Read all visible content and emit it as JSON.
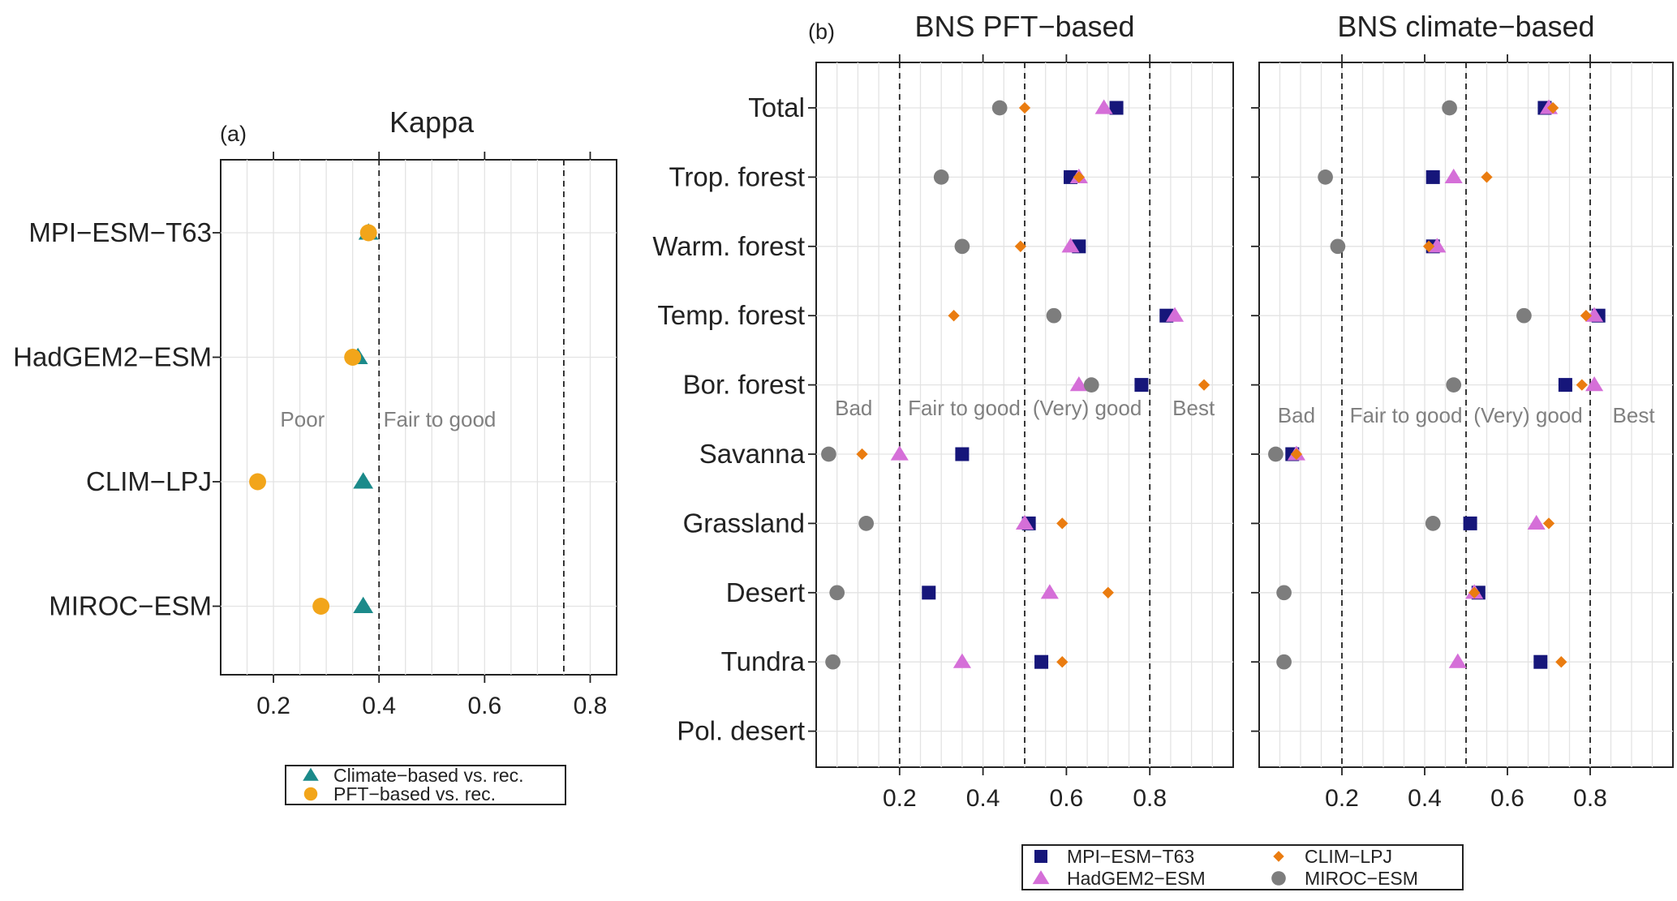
{
  "colors": {
    "teal": "#1b8a8a",
    "orange_circle": "#f2a51a",
    "navy": "#16167a",
    "violet": "#d56fd8",
    "orange_diamond": "#ea7c10",
    "gray": "#7d7d7d"
  },
  "chart_data": [
    {
      "id": "a",
      "type": "scatter",
      "panel_label": "(a)",
      "title": "Kappa",
      "categories": [
        "MPI−ESM−T63",
        "HadGEM2−ESM",
        "CLIM−LPJ",
        "MIROC−ESM"
      ],
      "xlim": [
        0.1,
        0.85
      ],
      "xticks": [
        0.2,
        0.4,
        0.6,
        0.8
      ],
      "xtick_labels": [
        "0.2",
        "0.4",
        "0.6",
        "0.8"
      ],
      "reference_lines": [
        0.4,
        0.75
      ],
      "zone_labels": [
        {
          "text": "Poor",
          "x": 0.255
        },
        {
          "text": "Fair  to  good",
          "x": 0.515
        }
      ],
      "series": [
        {
          "name": "Climate−based vs. rec.",
          "marker": "triangle",
          "color": "#1b8a8a",
          "values": [
            0.38,
            0.36,
            0.37,
            0.37
          ]
        },
        {
          "name": "PFT−based vs. rec.",
          "marker": "circle",
          "color": "#f2a51a",
          "values": [
            0.38,
            0.35,
            0.17,
            0.29
          ]
        }
      ]
    },
    {
      "id": "b1",
      "type": "scatter",
      "panel_label": "(b)",
      "title": "BNS  PFT−based",
      "categories": [
        "Total",
        "Trop. forest",
        "Warm. forest",
        "Temp. forest",
        "Bor. forest",
        "Savanna",
        "Grassland",
        "Desert",
        "Tundra",
        "Pol. desert"
      ],
      "xlim": [
        0.0,
        1.0
      ],
      "xticks": [
        0.2,
        0.4,
        0.6,
        0.8
      ],
      "xtick_labels": [
        "0.2",
        "0.4",
        "0.6",
        "0.8"
      ],
      "reference_lines": [
        0.2,
        0.5,
        0.8
      ],
      "zone_labels": [
        {
          "text": "Bad",
          "x": 0.09
        },
        {
          "text": "Fair to good",
          "x": 0.355
        },
        {
          "text": "(Very) good",
          "x": 0.65
        },
        {
          "text": "Best",
          "x": 0.905
        }
      ],
      "series": [
        {
          "name": "MPI−ESM−T63",
          "marker": "square",
          "color": "#16167a",
          "values": [
            0.72,
            0.61,
            0.63,
            0.84,
            0.78,
            0.35,
            0.51,
            0.27,
            0.54,
            null
          ]
        },
        {
          "name": "HadGEM2−ESM",
          "marker": "triangle",
          "color": "#d56fd8",
          "values": [
            0.69,
            0.63,
            0.61,
            0.86,
            0.63,
            0.2,
            0.5,
            0.56,
            0.35,
            null
          ]
        },
        {
          "name": "CLIM−LPJ",
          "marker": "diamond",
          "color": "#ea7c10",
          "values": [
            0.5,
            0.63,
            0.49,
            0.33,
            0.93,
            0.11,
            0.59,
            0.7,
            0.59,
            null
          ]
        },
        {
          "name": "MIROC−ESM",
          "marker": "circle",
          "color": "#7d7d7d",
          "values": [
            0.44,
            0.3,
            0.35,
            0.57,
            0.66,
            0.03,
            0.12,
            0.05,
            0.04,
            null
          ]
        }
      ]
    },
    {
      "id": "b2",
      "type": "scatter",
      "panel_label": "",
      "title": "BNS  climate−based",
      "categories": [
        "Total",
        "Trop. forest",
        "Warm. forest",
        "Temp. forest",
        "Bor. forest",
        "Savanna",
        "Grassland",
        "Desert",
        "Tundra",
        "Pol. desert"
      ],
      "xlim": [
        0.0,
        1.0
      ],
      "xticks": [
        0.2,
        0.4,
        0.6,
        0.8
      ],
      "xtick_labels": [
        "0.2",
        "0.4",
        "0.6",
        "0.8"
      ],
      "reference_lines": [
        0.2,
        0.5,
        0.8
      ],
      "zone_labels": [
        {
          "text": "Bad",
          "x": 0.09
        },
        {
          "text": "Fair to good",
          "x": 0.355
        },
        {
          "text": "(Very) good",
          "x": 0.65
        },
        {
          "text": "Best",
          "x": 0.905
        }
      ],
      "series": [
        {
          "name": "MPI−ESM−T63",
          "marker": "square",
          "color": "#16167a",
          "values": [
            0.69,
            0.42,
            0.42,
            0.82,
            0.74,
            0.08,
            0.51,
            0.53,
            0.68,
            null
          ]
        },
        {
          "name": "HadGEM2−ESM",
          "marker": "triangle",
          "color": "#d56fd8",
          "values": [
            0.7,
            0.47,
            0.43,
            0.81,
            0.81,
            0.09,
            0.67,
            0.52,
            0.48,
            null
          ]
        },
        {
          "name": "CLIM−LPJ",
          "marker": "diamond",
          "color": "#ea7c10",
          "values": [
            0.71,
            0.55,
            0.41,
            0.79,
            0.78,
            0.09,
            0.7,
            0.52,
            0.73,
            null
          ]
        },
        {
          "name": "MIROC−ESM",
          "marker": "circle",
          "color": "#7d7d7d",
          "values": [
            0.46,
            0.16,
            0.19,
            0.64,
            0.47,
            0.04,
            0.42,
            0.06,
            0.06,
            null
          ]
        }
      ]
    }
  ],
  "legend_a": [
    {
      "label": "Climate−based vs. rec.",
      "marker": "triangle",
      "color": "#1b8a8a"
    },
    {
      "label": "PFT−based vs. rec.",
      "marker": "circle",
      "color": "#f2a51a"
    }
  ],
  "legend_b": [
    {
      "label": "MPI−ESM−T63",
      "marker": "square",
      "color": "#16167a"
    },
    {
      "label": "CLIM−LPJ",
      "marker": "diamond",
      "color": "#ea7c10"
    },
    {
      "label": "HadGEM2−ESM",
      "marker": "triangle",
      "color": "#d56fd8"
    },
    {
      "label": "MIROC−ESM",
      "marker": "circle",
      "color": "#7d7d7d"
    }
  ]
}
